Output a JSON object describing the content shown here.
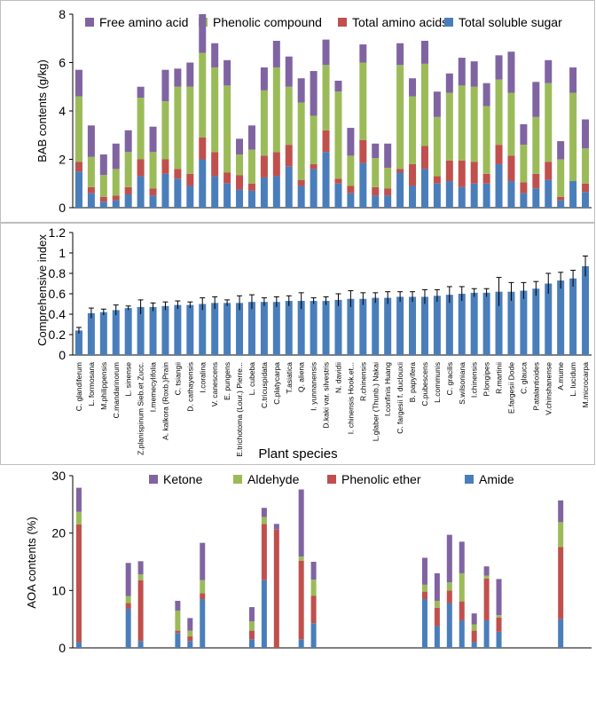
{
  "chart_data": [
    {
      "type": "stacked-bar",
      "title": "",
      "ylabel": "BAB contents (g/kg)",
      "xlabel": "",
      "ylim": [
        0,
        8
      ],
      "yticks": [
        0,
        2,
        4,
        6,
        8
      ],
      "grid": false,
      "legend": "top",
      "series": [
        {
          "name": "Total soluble sugar",
          "color": "#4a7ebb",
          "values": [
            1.5,
            0.6,
            0.25,
            0.3,
            0.55,
            1.3,
            0.5,
            1.4,
            1.2,
            0.9,
            2.0,
            1.3,
            1.0,
            0.75,
            0.7,
            1.25,
            1.3,
            1.7,
            0.9,
            1.6,
            2.3,
            1.0,
            0.6,
            1.85,
            0.5,
            0.5,
            1.45,
            0.9,
            1.6,
            1.0,
            1.1,
            0.85,
            1.0,
            1.0,
            1.8,
            1.1,
            0.6,
            0.8,
            1.15,
            0.3,
            1.1,
            0.65
          ]
        },
        {
          "name": "Total amino acids",
          "color": "#c0504d",
          "values": [
            0.4,
            0.25,
            0.2,
            0.2,
            0.3,
            0.7,
            0.3,
            0.6,
            0.4,
            0.5,
            0.9,
            1.0,
            0.45,
            0.6,
            0.3,
            0.9,
            1.0,
            0.9,
            0.25,
            0.2,
            0.9,
            0.2,
            0.3,
            0.95,
            0.35,
            0.3,
            0.15,
            0.9,
            0.95,
            0.3,
            0.85,
            1.1,
            0.9,
            0.4,
            0.8,
            1.05,
            0.45,
            0.6,
            0.75,
            0.15,
            0.0,
            0.35
          ]
        },
        {
          "name": "Phenolic compound",
          "color": "#9bbb59",
          "values": [
            2.7,
            1.25,
            0.9,
            1.1,
            1.45,
            2.55,
            1.5,
            2.4,
            3.4,
            3.6,
            3.5,
            3.5,
            3.6,
            0.85,
            1.4,
            2.7,
            3.5,
            2.4,
            3.2,
            2.0,
            2.7,
            3.6,
            1.25,
            3.2,
            1.2,
            0.85,
            4.3,
            2.8,
            3.4,
            2.45,
            2.8,
            3.1,
            3.1,
            2.8,
            2.7,
            2.6,
            1.55,
            2.35,
            3.25,
            1.55,
            3.65,
            1.45
          ]
        },
        {
          "name": "Free amino acid",
          "color": "#8064a2",
          "values": [
            1.1,
            1.3,
            0.85,
            1.05,
            0.9,
            0.45,
            1.05,
            1.3,
            0.75,
            1.0,
            1.6,
            1.0,
            1.05,
            0.65,
            1.0,
            0.95,
            1.1,
            1.25,
            1.0,
            1.85,
            1.05,
            0.45,
            1.15,
            0.75,
            0.6,
            1.0,
            0.9,
            0.75,
            0.95,
            1.05,
            0.8,
            1.15,
            1.05,
            0.95,
            1.0,
            1.7,
            0.85,
            1.45,
            0.95,
            0.75,
            1.05,
            1.2
          ]
        }
      ]
    },
    {
      "type": "bar",
      "title": "",
      "ylabel": "Comprehensive index",
      "xlabel": "Plant species",
      "ylim": [
        0,
        1.2
      ],
      "yticks": [
        0,
        0.2,
        0.4,
        0.6,
        0.8,
        1,
        1.2
      ],
      "grid": false,
      "error_bars": true,
      "categories": [
        "C. glandiferum",
        "L. formosana",
        "M.philippensis",
        "C.mandarinorum",
        "L. sinense",
        "Z.planispinum Sieb.et Zucc.",
        "I.memecylifolia",
        "A. kalkora (Roxb.)Prain",
        "C. tsiangii",
        "D. cathayensis",
        "I.coralina",
        "V. canescens",
        "E. pungens",
        "E.trichotoma (Lour.) Pierre...",
        "L. cubeba",
        "C.tricuspidata",
        "C.platycarpa",
        "T.asiatica",
        "Q. aliena",
        "I. yunnanensis",
        "D.kaki var. silvestris",
        "N. davidii",
        "I. chinensis Hook.et...",
        "R.chinensis",
        "L.glaber (Thunb.) Nakai",
        "I.confinis Huang",
        "C. fargesii f. duclouxii",
        "B. papyifera",
        "C.pubescens",
        "L.communis",
        "C. gracilis",
        "S.wilsoniana",
        "I.chinensis",
        "P.longipes",
        "R.martinii",
        "E.fargesii Dode",
        "C. glauca",
        "P.atalantioides",
        "V.chinshanense",
        "A.mume",
        "L. lucidum",
        "M.microcarpa"
      ],
      "values": [
        0.24,
        0.41,
        0.42,
        0.44,
        0.46,
        0.47,
        0.47,
        0.48,
        0.49,
        0.49,
        0.5,
        0.51,
        0.51,
        0.51,
        0.52,
        0.52,
        0.52,
        0.53,
        0.53,
        0.53,
        0.53,
        0.54,
        0.55,
        0.55,
        0.56,
        0.56,
        0.57,
        0.57,
        0.57,
        0.58,
        0.59,
        0.6,
        0.61,
        0.61,
        0.62,
        0.62,
        0.63,
        0.65,
        0.7,
        0.73,
        0.75,
        0.87
      ],
      "errors": [
        0.03,
        0.05,
        0.03,
        0.05,
        0.02,
        0.07,
        0.04,
        0.04,
        0.04,
        0.03,
        0.06,
        0.06,
        0.03,
        0.07,
        0.07,
        0.04,
        0.05,
        0.05,
        0.08,
        0.03,
        0.04,
        0.06,
        0.08,
        0.06,
        0.05,
        0.06,
        0.05,
        0.05,
        0.07,
        0.06,
        0.08,
        0.07,
        0.04,
        0.04,
        0.14,
        0.09,
        0.08,
        0.07,
        0.1,
        0.08,
        0.08,
        0.1
      ],
      "color": "#4a7ebb"
    },
    {
      "type": "stacked-bar",
      "title": "",
      "ylabel": "AOA contents (%)",
      "xlabel": "",
      "ylim": [
        0,
        30
      ],
      "yticks": [
        0,
        10,
        20,
        30
      ],
      "grid": false,
      "legend": "top",
      "series": [
        {
          "name": "Amide",
          "color": "#4a7ebb",
          "values": [
            1.0,
            0,
            0,
            0,
            6.8,
            1.2,
            0,
            0,
            2.6,
            1.2,
            8.5,
            0,
            0,
            0,
            1.5,
            11.8,
            0,
            0,
            1.5,
            4.3,
            0,
            0,
            0,
            0,
            0,
            0,
            0,
            0,
            8.5,
            3.8,
            7.8,
            4.8,
            1.0,
            4.8,
            2.8,
            0,
            0,
            0,
            0,
            5.0,
            0,
            0
          ]
        },
        {
          "name": "Phenolic ether",
          "color": "#c0504d",
          "values": [
            20.5,
            0,
            0,
            0,
            1.0,
            10.6,
            0,
            0,
            0.4,
            0.8,
            1.0,
            0,
            0,
            0,
            1.5,
            9.8,
            20.6,
            0,
            13.7,
            4.8,
            0,
            0,
            0,
            0,
            0,
            0,
            0,
            0,
            1.3,
            3.2,
            2.2,
            3.3,
            2.0,
            7.3,
            2.5,
            0,
            0,
            0,
            0,
            12.6,
            0,
            0
          ]
        },
        {
          "name": "Aldehyde",
          "color": "#9bbb59",
          "values": [
            2.2,
            0,
            0,
            0,
            1.2,
            1.0,
            0,
            0,
            3.5,
            1.0,
            2.3,
            0,
            0,
            0,
            1.6,
            1.2,
            0.0,
            0,
            0.7,
            2.8,
            0,
            0,
            0,
            0,
            0,
            0,
            0,
            0,
            1.2,
            1.2,
            1.4,
            4.9,
            1.1,
            0.5,
            0.4,
            0,
            0,
            0,
            0,
            4.3,
            0,
            0
          ]
        },
        {
          "name": "Ketone",
          "color": "#8064a2",
          "values": [
            4.2,
            0,
            0,
            0,
            5.8,
            2.3,
            0,
            0,
            1.7,
            2.2,
            6.5,
            0,
            0,
            0,
            2.5,
            1.6,
            1.0,
            0,
            11.7,
            3.1,
            0,
            0,
            0,
            0,
            0,
            0,
            0,
            0,
            4.7,
            4.8,
            8.3,
            5.5,
            1.9,
            1.6,
            6.3,
            0,
            0,
            0,
            0,
            3.8,
            0,
            0
          ]
        }
      ]
    }
  ]
}
